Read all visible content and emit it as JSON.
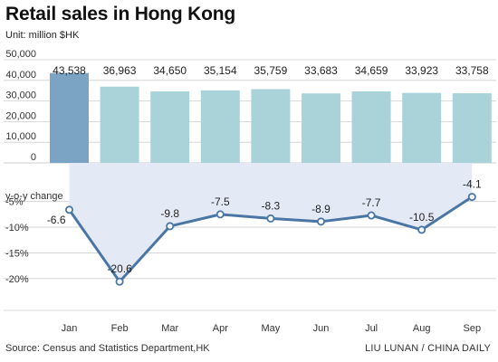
{
  "title": "Retail sales in Hong Kong",
  "unit": "Unit: million $HK",
  "source": "Source: Census and Statistics Department,HK",
  "credit": "LIU LUNAN / CHINA DAILY",
  "chart_data": [
    {
      "type": "bar",
      "categories": [
        "Jan",
        "Feb",
        "Mar",
        "Apr",
        "May",
        "Jun",
        "Jul",
        "Aug",
        "Sep"
      ],
      "values": [
        43538,
        36963,
        34650,
        35154,
        35759,
        33683,
        34659,
        33923,
        33758
      ],
      "value_labels": [
        "43,538",
        "36,963",
        "34,650",
        "35,154",
        "35,759",
        "33,683",
        "34,659",
        "33,923",
        "33,758"
      ],
      "y_ticks": [
        "50,000",
        "40,000",
        "30,000",
        "20,000",
        "10,000",
        "0"
      ],
      "ylim": [
        0,
        50000
      ],
      "colors": {
        "highlight": "#7ba3c4",
        "default": "#a9d3d8"
      },
      "grid": true
    },
    {
      "type": "line",
      "title": "y-o-y change",
      "categories": [
        "Jan",
        "Feb",
        "Mar",
        "Apr",
        "May",
        "Jun",
        "Jul",
        "Aug",
        "Sep"
      ],
      "values": [
        -6.6,
        -20.6,
        -9.8,
        -7.5,
        -8.3,
        -8.9,
        -7.7,
        -10.5,
        -4.1
      ],
      "y_ticks": [
        "-5%",
        "-10%",
        "-15%",
        "-20%"
      ],
      "ylim": [
        -22.5,
        -2.5
      ],
      "colors": {
        "line": "#4a76a6",
        "fill": "#e4eaf5"
      },
      "grid": true
    }
  ]
}
